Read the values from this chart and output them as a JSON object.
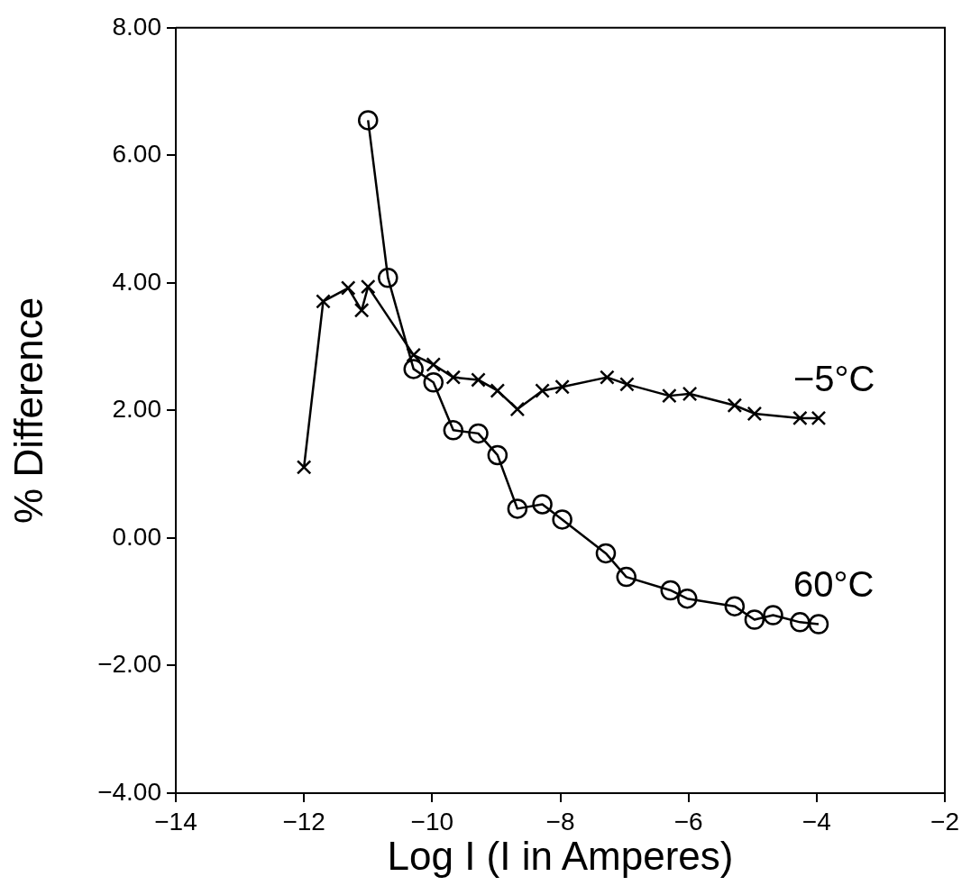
{
  "chart_data": {
    "type": "line",
    "xlabel": "Log I (I in Amperes)",
    "ylabel": "% Difference",
    "xlim": [
      -14,
      -2
    ],
    "xticks": [
      {
        "value": -14,
        "label": "−14"
      },
      {
        "value": -12,
        "label": "−12"
      },
      {
        "value": -10,
        "label": "−10"
      },
      {
        "value": -8,
        "label": "−8"
      },
      {
        "value": -6,
        "label": "−6"
      },
      {
        "value": -4,
        "label": "−4"
      },
      {
        "value": -2,
        "label": "−2"
      }
    ],
    "ylim": [
      -4,
      8
    ],
    "yticks": [
      {
        "value": -4,
        "label": "−4.00"
      },
      {
        "value": -2,
        "label": "−2.00"
      },
      {
        "value": 0,
        "label": "0.00"
      },
      {
        "value": 2,
        "label": "2.00"
      },
      {
        "value": 4,
        "label": "4.00"
      },
      {
        "value": 6,
        "label": "6.00"
      },
      {
        "value": 8,
        "label": "8.00"
      }
    ],
    "grid": false,
    "legend": false,
    "line_style": "solid",
    "series": [
      {
        "name": "−5°C",
        "color": "#000000",
        "marker": "cross",
        "x": [
          -12.0,
          -11.7,
          -11.31,
          -11.1,
          -11.0,
          -10.29,
          -9.98,
          -9.67,
          -9.28,
          -8.98,
          -8.67,
          -8.28,
          -7.97,
          -7.27,
          -6.96,
          -6.3,
          -5.98,
          -5.28,
          -4.97,
          -4.26,
          -3.97
        ],
        "values": [
          1.11,
          3.71,
          3.92,
          3.57,
          3.94,
          2.87,
          2.72,
          2.52,
          2.48,
          2.31,
          2.02,
          2.31,
          2.37,
          2.52,
          2.41,
          2.23,
          2.26,
          2.08,
          1.95,
          1.88,
          1.88
        ]
      },
      {
        "name": "60°C",
        "color": "#000000",
        "marker": "circle",
        "x": [
          -11.0,
          -10.69,
          -10.29,
          -9.98,
          -9.67,
          -9.28,
          -8.98,
          -8.67,
          -8.28,
          -7.97,
          -7.29,
          -6.97,
          -6.28,
          -6.02,
          -5.28,
          -4.97,
          -4.68,
          -4.26,
          -3.97
        ],
        "values": [
          6.55,
          4.08,
          2.65,
          2.44,
          1.69,
          1.64,
          1.3,
          0.46,
          0.53,
          0.29,
          -0.24,
          -0.61,
          -0.82,
          -0.95,
          -1.07,
          -1.28,
          -1.21,
          -1.32,
          -1.35
        ]
      }
    ]
  }
}
